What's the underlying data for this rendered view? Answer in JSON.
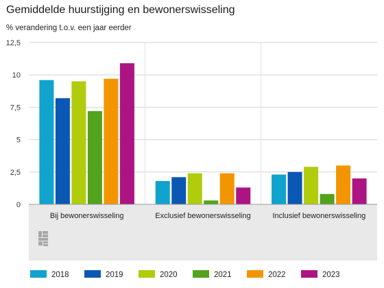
{
  "chart_data": {
    "type": "bar",
    "title": "Gemiddelde huurstijging en bewonerswisseling",
    "ylabel": "% verandering t.o.v. een jaar eerder",
    "ylim": [
      0,
      12.5
    ],
    "yticks": [
      "0",
      "2,5",
      "5",
      "7,5",
      "10",
      "12,5"
    ],
    "categories": [
      "Bij bewonerswisseling",
      "Exclusief bewonerswisseling",
      "Inclusief bewonerswisseling"
    ],
    "series": [
      {
        "name": "2018",
        "color": "#0fa3cd",
        "values": [
          9.6,
          1.8,
          2.3
        ]
      },
      {
        "name": "2019",
        "color": "#0a58b4",
        "values": [
          8.2,
          2.1,
          2.5
        ]
      },
      {
        "name": "2020",
        "color": "#b0cc0c",
        "values": [
          9.5,
          2.4,
          2.9
        ]
      },
      {
        "name": "2021",
        "color": "#53a31d",
        "values": [
          7.2,
          0.3,
          0.8
        ]
      },
      {
        "name": "2022",
        "color": "#f39500",
        "values": [
          9.7,
          2.4,
          3.0
        ]
      },
      {
        "name": "2023",
        "color": "#ac1483",
        "values": [
          10.9,
          1.3,
          2.0
        ]
      }
    ],
    "grid": true,
    "legend_position": "bottom",
    "logo": "cbs-logo"
  }
}
